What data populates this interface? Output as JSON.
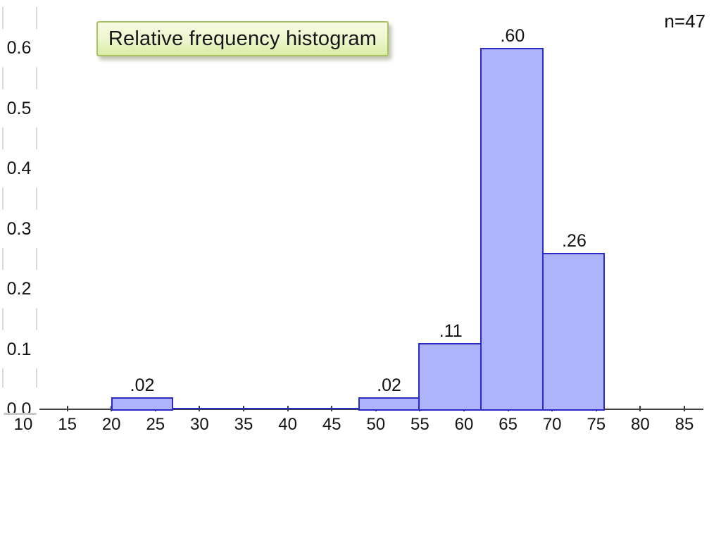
{
  "chart_data": {
    "type": "bar",
    "subtype": "relative-frequency-histogram",
    "title": "Relative frequency histogram",
    "annotation_n": "n=47",
    "xlabel": "",
    "ylabel": "",
    "xlim": [
      10,
      87
    ],
    "ylim": [
      0,
      0.6
    ],
    "grid": "dashed-guides-left-only",
    "x_ticks": [
      10,
      15,
      20,
      25,
      30,
      35,
      40,
      45,
      50,
      55,
      60,
      65,
      70,
      75,
      80,
      85
    ],
    "y_ticks": [
      "0.6",
      "0.5",
      "0.4",
      "0.3",
      "0.2",
      "0.1",
      "0.0"
    ],
    "y_tick_values": [
      0.6,
      0.5,
      0.4,
      0.3,
      0.2,
      0.1,
      0.0
    ],
    "bins": [
      {
        "x0": 20,
        "x1": 27,
        "value": 0.02,
        "label": ".02"
      },
      {
        "x0": 27,
        "x1": 34,
        "value": 0,
        "label": ""
      },
      {
        "x0": 34,
        "x1": 41,
        "value": 0,
        "label": ""
      },
      {
        "x0": 41,
        "x1": 48,
        "value": 0,
        "label": ""
      },
      {
        "x0": 48,
        "x1": 55,
        "value": 0.02,
        "label": ".02"
      },
      {
        "x0": 55,
        "x1": 62,
        "value": 0.11,
        "label": ".11"
      },
      {
        "x0": 62,
        "x1": 69,
        "value": 0.6,
        "label": ".60"
      },
      {
        "x0": 69,
        "x1": 76,
        "value": 0.26,
        "label": ".26"
      }
    ],
    "colors": {
      "bar_fill": "#afb3fa",
      "bar_border": "#2b2bc8",
      "axis": "#3f3f3f",
      "dash_guide": "#d9d9d9",
      "title_box_border": "#a8c163",
      "title_box_bg_top": "#f7fbe3",
      "title_box_bg_bottom": "#d9eca6"
    }
  }
}
